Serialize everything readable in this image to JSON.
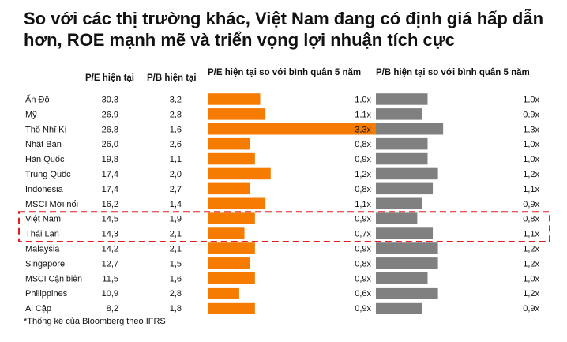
{
  "title": "So với các thị trường khác, Việt Nam đang có định giá hấp dẫn hơn, ROE mạnh mẽ và triển vọng lợi nhuận tích cực",
  "headers": {
    "pe": "P/E hiện tại",
    "pb": "P/B hiện tại",
    "pe_rel": "P/E hiện tại so với bình quân 5 năm",
    "pb_rel": "P/B hiện tại so với bình quân 5 năm"
  },
  "footnote": "*Thống kê của Bloomberg theo IFRS",
  "colors": {
    "pe_bar": "#f57c00",
    "pb_bar": "#808080",
    "highlight": "#e02020"
  },
  "chart_data": {
    "type": "table",
    "highlighted": [
      "Việt Nam",
      "Thái Lan"
    ],
    "rows": [
      {
        "name": "Ấn Độ",
        "pe": "30,3",
        "pb": "3,2",
        "pe_rel": 1.0,
        "pe_rel_label": "1,0x",
        "pb_rel": 1.0,
        "pb_rel_label": "1,0x"
      },
      {
        "name": "Mỹ",
        "pe": "26,9",
        "pb": "2,8",
        "pe_rel": 1.1,
        "pe_rel_label": "1,1x",
        "pb_rel": 0.9,
        "pb_rel_label": "0,9x"
      },
      {
        "name": "Thổ Nhĩ Kì",
        "pe": "26,8",
        "pb": "1,6",
        "pe_rel": 3.3,
        "pe_rel_label": "3,3x",
        "pb_rel": 1.3,
        "pb_rel_label": "1,3x"
      },
      {
        "name": "Nhật Bản",
        "pe": "26,0",
        "pb": "2,6",
        "pe_rel": 0.8,
        "pe_rel_label": "0,8x",
        "pb_rel": 1.0,
        "pb_rel_label": "1,0x"
      },
      {
        "name": "Hàn Quốc",
        "pe": "19,8",
        "pb": "1,1",
        "pe_rel": 0.9,
        "pe_rel_label": "0,9x",
        "pb_rel": 1.0,
        "pb_rel_label": "1,0x"
      },
      {
        "name": "Trung Quốc",
        "pe": "17,4",
        "pb": "2,0",
        "pe_rel": 1.2,
        "pe_rel_label": "1,2x",
        "pb_rel": 1.2,
        "pb_rel_label": "1,2x"
      },
      {
        "name": "Indonesia",
        "pe": "17,4",
        "pb": "2,7",
        "pe_rel": 0.8,
        "pe_rel_label": "0,8x",
        "pb_rel": 1.1,
        "pb_rel_label": "1,1x"
      },
      {
        "name": "MSCI Mới nổi",
        "pe": "16,2",
        "pb": "1,4",
        "pe_rel": 1.1,
        "pe_rel_label": "1,1x",
        "pb_rel": 0.9,
        "pb_rel_label": "0,9x"
      },
      {
        "name": "Việt Nam",
        "pe": "14,5",
        "pb": "1,9",
        "pe_rel": 0.9,
        "pe_rel_label": "0,9x",
        "pb_rel": 0.8,
        "pb_rel_label": "0,8x"
      },
      {
        "name": "Thái Lan",
        "pe": "14,3",
        "pb": "2,1",
        "pe_rel": 0.7,
        "pe_rel_label": "0,7x",
        "pb_rel": 1.1,
        "pb_rel_label": "1,1x"
      },
      {
        "name": "Malaysia",
        "pe": "14,2",
        "pb": "2,1",
        "pe_rel": 0.9,
        "pe_rel_label": "0,9x",
        "pb_rel": 1.2,
        "pb_rel_label": "1,2x"
      },
      {
        "name": "Singapore",
        "pe": "12,7",
        "pb": "1,5",
        "pe_rel": 0.8,
        "pe_rel_label": "0,8x",
        "pb_rel": 1.2,
        "pb_rel_label": "1,2x"
      },
      {
        "name": "MSCI Cận biên",
        "pe": "11,5",
        "pb": "1,6",
        "pe_rel": 0.9,
        "pe_rel_label": "0,9x",
        "pb_rel": 1.0,
        "pb_rel_label": "1,0x"
      },
      {
        "name": "Philippines",
        "pe": "10,9",
        "pb": "2,8",
        "pe_rel": 0.6,
        "pe_rel_label": "0,6x",
        "pb_rel": 1.2,
        "pb_rel_label": "1,2x"
      },
      {
        "name": "Ai Cập",
        "pe": "8,2",
        "pb": "1,8",
        "pe_rel": 0.9,
        "pe_rel_label": "0,9x",
        "pb_rel": 0.9,
        "pb_rel_label": "0,9x"
      }
    ]
  }
}
